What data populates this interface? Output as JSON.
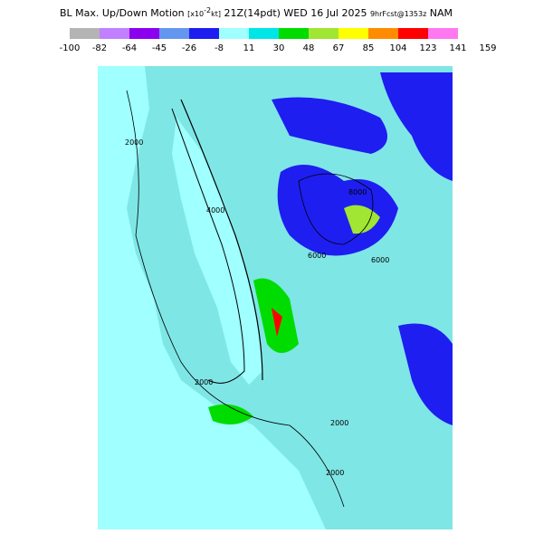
{
  "header": {
    "title": "BL Max. Up/Down Motion",
    "unit_open": "[x10",
    "unit_exponent": "-2",
    "unit_close": "kt]",
    "valid_time": "21Z(14pdt) WED 16 Jul 2025",
    "forecast": "9hrFcst@1353z",
    "model": "NAM"
  },
  "colorbar": {
    "labels": [
      "-100",
      "-82",
      "-64",
      "-45",
      "-26",
      "-8",
      "11",
      "30",
      "48",
      "67",
      "85",
      "104",
      "123",
      "141",
      "159"
    ],
    "colors": [
      "#b4b4b4",
      "#c080ff",
      "#8c00f0",
      "#6496f0",
      "#1e1ef0",
      "#a0ffff",
      "#00e6e6",
      "#00dc00",
      "#a0e632",
      "#ffff00",
      "#ff8c00",
      "#ff0000",
      "#ff78f0"
    ]
  },
  "map": {
    "contour_labels": [
      "2000",
      "4000",
      "6000",
      "8000",
      "2000",
      "6000",
      "2000",
      "2000"
    ]
  }
}
